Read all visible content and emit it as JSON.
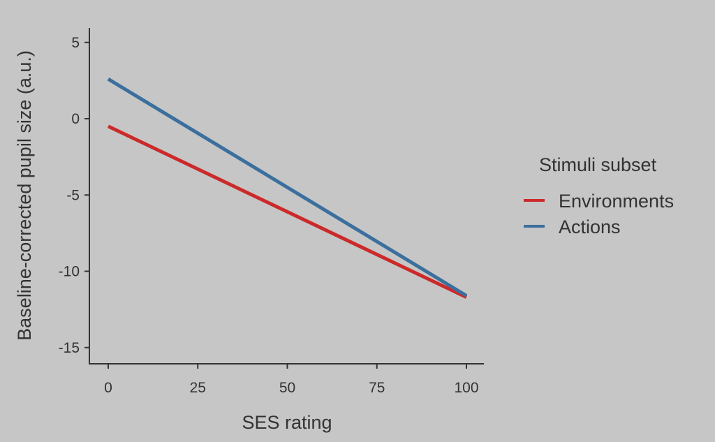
{
  "chart_data": {
    "type": "line",
    "title": "",
    "xlabel": "SES rating",
    "ylabel": "Baseline-corrected pupil size (a.u.)",
    "xlim": [
      -5,
      105
    ],
    "ylim": [
      -16,
      6
    ],
    "xticks": [
      0,
      25,
      50,
      75,
      100
    ],
    "xtick_labels": [
      "0",
      "25",
      "50",
      "75",
      "100"
    ],
    "yticks": [
      5,
      0,
      -5,
      -10,
      -15
    ],
    "ytick_labels": [
      "5",
      "0",
      "-5",
      "-10",
      "-15"
    ],
    "grid": false,
    "legend": {
      "title": "Stimuli subset",
      "placement": "right"
    },
    "series": [
      {
        "name": "Environments",
        "color": "#cc2a2a",
        "x": [
          0,
          100
        ],
        "y": [
          -0.5,
          -11.7
        ]
      },
      {
        "name": "Actions",
        "color": "#3b6f9d",
        "x": [
          0,
          100
        ],
        "y": [
          2.6,
          -11.6
        ]
      }
    ]
  }
}
